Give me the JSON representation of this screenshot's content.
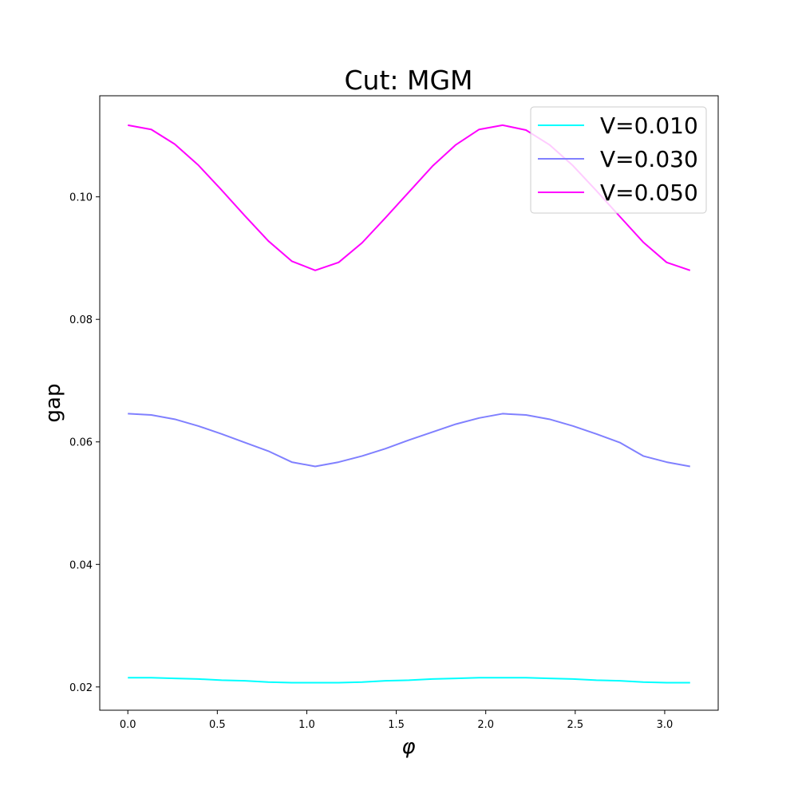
{
  "chart_data": {
    "type": "line",
    "title": "Cut: MGM",
    "xlabel": "φ",
    "ylabel": "gap",
    "xlim": [
      -0.157,
      3.299
    ],
    "ylim": [
      0.0162,
      0.1165
    ],
    "xticks": [
      0.0,
      0.5,
      1.0,
      1.5,
      2.0,
      2.5,
      3.0
    ],
    "xtick_labels": [
      "0.0",
      "0.5",
      "1.0",
      "1.5",
      "2.0",
      "2.5",
      "3.0"
    ],
    "yticks": [
      0.02,
      0.04,
      0.06,
      0.08,
      0.1
    ],
    "ytick_labels": [
      "0.02",
      "0.04",
      "0.06",
      "0.08",
      "0.10"
    ],
    "legend_position": "top-right",
    "grid": false,
    "series": [
      {
        "name": "V=0.010",
        "color": "#00ffff",
        "x": [
          0.0,
          0.131,
          0.262,
          0.393,
          0.524,
          0.654,
          0.785,
          0.916,
          1.047,
          1.178,
          1.309,
          1.44,
          1.571,
          1.702,
          1.833,
          1.963,
          2.094,
          2.225,
          2.356,
          2.487,
          2.618,
          2.749,
          2.88,
          3.011,
          3.142
        ],
        "y": [
          0.0215,
          0.0215,
          0.0214,
          0.0213,
          0.0211,
          0.021,
          0.0208,
          0.0207,
          0.0207,
          0.0207,
          0.0208,
          0.021,
          0.0211,
          0.0213,
          0.0214,
          0.0215,
          0.0215,
          0.0215,
          0.0214,
          0.0213,
          0.0211,
          0.021,
          0.0208,
          0.0207,
          0.0207
        ]
      },
      {
        "name": "V=0.030",
        "color": "#8080ff",
        "x": [
          0.0,
          0.131,
          0.262,
          0.393,
          0.524,
          0.654,
          0.785,
          0.916,
          1.047,
          1.178,
          1.309,
          1.44,
          1.571,
          1.702,
          1.833,
          1.963,
          2.094,
          2.225,
          2.356,
          2.487,
          2.618,
          2.749,
          2.88,
          3.011,
          3.142
        ],
        "y": [
          0.0646,
          0.0644,
          0.0637,
          0.0626,
          0.0613,
          0.0599,
          0.0585,
          0.0567,
          0.056,
          0.0567,
          0.0577,
          0.0589,
          0.0603,
          0.0616,
          0.0629,
          0.0639,
          0.0646,
          0.0644,
          0.0637,
          0.0626,
          0.0613,
          0.0599,
          0.0577,
          0.0567,
          0.056
        ]
      },
      {
        "name": "V=0.050",
        "color": "#ff00ff",
        "x": [
          0.0,
          0.131,
          0.262,
          0.393,
          0.524,
          0.654,
          0.785,
          0.916,
          1.047,
          1.178,
          1.309,
          1.44,
          1.571,
          1.702,
          1.833,
          1.963,
          2.094,
          2.225,
          2.356,
          2.487,
          2.618,
          2.749,
          2.88,
          3.011,
          3.142
        ],
        "y": [
          0.1117,
          0.111,
          0.1086,
          0.1052,
          0.1011,
          0.0969,
          0.0928,
          0.0895,
          0.088,
          0.0893,
          0.0925,
          0.0966,
          0.1008,
          0.105,
          0.1085,
          0.111,
          0.1117,
          0.1109,
          0.1085,
          0.1051,
          0.101,
          0.0968,
          0.0926,
          0.0893,
          0.088
        ]
      }
    ]
  }
}
